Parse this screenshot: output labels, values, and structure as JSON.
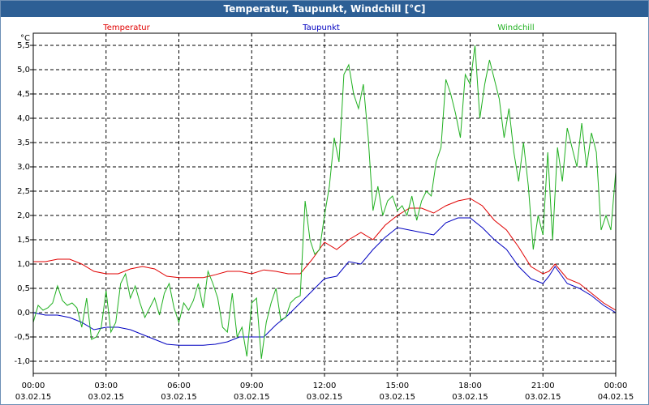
{
  "window": {
    "title": "Temperatur, Taupunkt, Windchill [°C]"
  },
  "chart_data": {
    "type": "line",
    "ylabel": "°C",
    "ylim": [
      -1.25,
      5.75
    ],
    "yticks": [
      -1.0,
      -0.5,
      0.0,
      0.5,
      1.0,
      1.5,
      2.0,
      2.5,
      3.0,
      3.5,
      4.0,
      4.5,
      5.0,
      5.5
    ],
    "ytick_labels": [
      "-1,0",
      "-0,5",
      "0,0",
      "0,5",
      "1,0",
      "1,5",
      "2,0",
      "2,5",
      "3,0",
      "3,5",
      "4,0",
      "4,5",
      "5,0",
      "5,5"
    ],
    "xlim": [
      0,
      24
    ],
    "xticks": [
      0,
      3,
      6,
      9,
      12,
      15,
      18,
      21,
      24
    ],
    "xtick_times": [
      "00:00",
      "03:00",
      "06:00",
      "09:00",
      "12:00",
      "15:00",
      "18:00",
      "21:00",
      "00:00"
    ],
    "xtick_dates": [
      "03.02.15",
      "03.02.15",
      "03.02.15",
      "03.02.15",
      "03.02.15",
      "03.02.15",
      "03.02.15",
      "03.02.15",
      "04.02.15"
    ],
    "grid": true,
    "series": [
      {
        "name": "Temperatur",
        "color": "#e00000",
        "x": [
          0,
          0.5,
          1,
          1.5,
          2,
          2.5,
          3,
          3.5,
          4,
          4.5,
          5,
          5.5,
          6,
          6.5,
          7,
          7.5,
          8,
          8.5,
          9,
          9.5,
          10,
          10.5,
          11,
          11.5,
          12,
          12.5,
          13,
          13.5,
          14,
          14.5,
          15,
          15.5,
          16,
          16.5,
          17,
          17.5,
          18,
          18.5,
          19,
          19.5,
          20,
          20.5,
          21,
          21.25,
          21.5,
          22,
          22.5,
          23,
          23.5,
          24
        ],
        "y": [
          1.05,
          1.05,
          1.1,
          1.1,
          1.0,
          0.85,
          0.8,
          0.8,
          0.9,
          0.95,
          0.9,
          0.75,
          0.72,
          0.72,
          0.72,
          0.78,
          0.85,
          0.85,
          0.8,
          0.88,
          0.85,
          0.8,
          0.8,
          1.1,
          1.45,
          1.3,
          1.5,
          1.65,
          1.5,
          1.8,
          2.0,
          2.15,
          2.15,
          2.05,
          2.2,
          2.3,
          2.35,
          2.2,
          1.9,
          1.7,
          1.35,
          0.95,
          0.8,
          0.85,
          1.0,
          0.7,
          0.6,
          0.4,
          0.2,
          0.05
        ]
      },
      {
        "name": "Taupunkt",
        "color": "#0000c0",
        "x": [
          0,
          0.5,
          1,
          1.5,
          2,
          2.5,
          3,
          3.5,
          4,
          4.5,
          5,
          5.5,
          6,
          6.5,
          7,
          7.5,
          8,
          8.5,
          9,
          9.5,
          10,
          10.5,
          11,
          11.5,
          12,
          12.5,
          13,
          13.5,
          14,
          14.5,
          15,
          15.5,
          16,
          16.5,
          17,
          17.5,
          18,
          18.5,
          19,
          19.5,
          20,
          20.5,
          21,
          21.25,
          21.5,
          22,
          22.5,
          23,
          23.5,
          24
        ],
        "y": [
          0.0,
          -0.05,
          -0.05,
          -0.1,
          -0.2,
          -0.35,
          -0.3,
          -0.3,
          -0.35,
          -0.45,
          -0.55,
          -0.65,
          -0.67,
          -0.67,
          -0.67,
          -0.65,
          -0.6,
          -0.5,
          -0.5,
          -0.5,
          -0.25,
          -0.05,
          0.2,
          0.45,
          0.7,
          0.75,
          1.05,
          1.0,
          1.3,
          1.55,
          1.75,
          1.7,
          1.65,
          1.6,
          1.85,
          1.95,
          1.95,
          1.75,
          1.5,
          1.3,
          0.95,
          0.7,
          0.6,
          0.75,
          0.95,
          0.6,
          0.5,
          0.35,
          0.15,
          0.0
        ]
      },
      {
        "name": "Windchill",
        "color": "#20b020",
        "x": [
          0,
          0.2,
          0.4,
          0.6,
          0.8,
          1.0,
          1.2,
          1.4,
          1.6,
          1.8,
          2.0,
          2.2,
          2.4,
          2.6,
          2.8,
          3.0,
          3.2,
          3.4,
          3.6,
          3.8,
          4.0,
          4.2,
          4.4,
          4.6,
          4.8,
          5.0,
          5.2,
          5.4,
          5.6,
          5.8,
          6.0,
          6.2,
          6.4,
          6.6,
          6.8,
          7.0,
          7.2,
          7.4,
          7.6,
          7.8,
          8.0,
          8.2,
          8.4,
          8.6,
          8.8,
          9.0,
          9.2,
          9.4,
          9.6,
          9.8,
          10.0,
          10.2,
          10.4,
          10.6,
          10.8,
          11.0,
          11.2,
          11.4,
          11.6,
          11.8,
          12.0,
          12.2,
          12.4,
          12.6,
          12.8,
          13.0,
          13.2,
          13.4,
          13.6,
          13.8,
          14.0,
          14.2,
          14.4,
          14.6,
          14.8,
          15.0,
          15.2,
          15.4,
          15.6,
          15.8,
          16.0,
          16.2,
          16.4,
          16.6,
          16.8,
          17.0,
          17.2,
          17.4,
          17.6,
          17.8,
          18.0,
          18.2,
          18.4,
          18.6,
          18.8,
          19.0,
          19.2,
          19.4,
          19.6,
          19.8,
          20.0,
          20.2,
          20.4,
          20.6,
          20.8,
          21.0,
          21.2,
          21.4,
          21.6,
          21.8,
          22.0,
          22.2,
          22.4,
          22.6,
          22.8,
          23.0,
          23.2,
          23.4,
          23.6,
          23.8,
          24.0
        ],
        "y": [
          -0.2,
          0.15,
          0.05,
          0.1,
          0.2,
          0.55,
          0.25,
          0.15,
          0.2,
          0.1,
          -0.3,
          0.3,
          -0.55,
          -0.5,
          -0.3,
          0.45,
          -0.4,
          -0.2,
          0.6,
          0.8,
          0.3,
          0.55,
          0.2,
          -0.1,
          0.1,
          0.3,
          -0.05,
          0.4,
          0.6,
          0.1,
          -0.2,
          0.2,
          0.05,
          0.25,
          0.6,
          0.1,
          0.85,
          0.6,
          0.3,
          -0.3,
          -0.4,
          0.4,
          -0.5,
          -0.3,
          -0.9,
          0.2,
          0.3,
          -0.95,
          -0.2,
          0.2,
          0.5,
          -0.15,
          -0.1,
          0.2,
          0.3,
          0.35,
          2.3,
          1.5,
          1.2,
          1.3,
          2.0,
          2.6,
          3.6,
          3.1,
          4.9,
          5.1,
          4.5,
          4.2,
          4.7,
          3.6,
          2.1,
          2.6,
          2.0,
          2.3,
          2.4,
          2.1,
          2.2,
          2.0,
          2.4,
          1.9,
          2.3,
          2.5,
          2.4,
          3.1,
          3.4,
          4.8,
          4.5,
          4.1,
          3.6,
          4.9,
          4.7,
          5.5,
          4.0,
          4.7,
          5.2,
          4.8,
          4.4,
          3.6,
          4.2,
          3.3,
          2.7,
          3.5,
          2.6,
          1.3,
          2.0,
          1.6,
          3.3,
          1.5,
          3.4,
          2.7,
          3.8,
          3.4,
          3.0,
          3.9,
          3.0,
          3.7,
          3.3,
          1.7,
          2.0,
          1.7,
          2.9
        ]
      }
    ]
  }
}
